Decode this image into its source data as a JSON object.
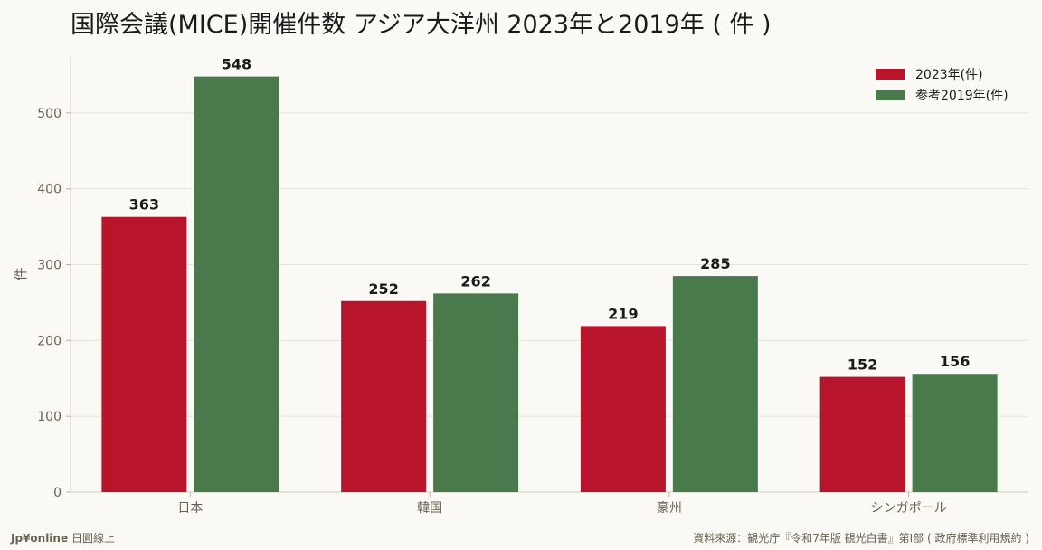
{
  "title": {
    "main": "国際会議(MICE)開催件数 アジア大洋州 2023年と2019年",
    "unit": "( 件 )"
  },
  "footer": {
    "brand": "Jp¥online",
    "brand_suffix": "日圓線上",
    "source": "資料來源：観光庁『令和7年版 観光白書』第I部 ( 政府標準利用規約 )"
  },
  "colors": {
    "series_2023": "#b8152c",
    "series_2019": "#4a7a4b",
    "background": "#faf9f5",
    "grid": "#e5e2da",
    "axis_text": "#6b6250"
  },
  "chart_data": {
    "type": "bar",
    "categories": [
      "日本",
      "韓国",
      "豪州",
      "シンガポール"
    ],
    "series": [
      {
        "name": "2023年(件)",
        "values": [
          363,
          252,
          219,
          152
        ]
      },
      {
        "name": "参考2019年(件)",
        "values": [
          548,
          262,
          285,
          156
        ]
      }
    ],
    "ylabel": "件",
    "xlabel": "",
    "ylim": [
      0,
      575
    ],
    "yticks": [
      0,
      100,
      200,
      300,
      400,
      500
    ],
    "grid": true,
    "legend_position": "top-right",
    "data_labels": true
  }
}
